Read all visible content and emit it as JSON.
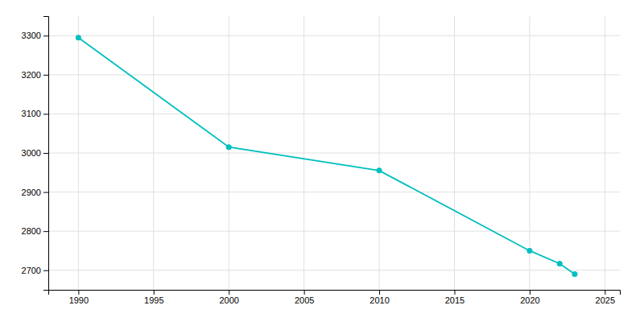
{
  "chart_data": {
    "type": "line",
    "x": [
      1990,
      2000,
      2010,
      2020,
      2022,
      2023
    ],
    "values": [
      3295,
      3015,
      2955,
      2750,
      2717,
      2690
    ],
    "color": "#00BFBF",
    "marker": "circle",
    "xlim": [
      1988,
      2026
    ],
    "ylim": [
      2650,
      3350
    ],
    "xticks": [
      1990,
      1995,
      2000,
      2005,
      2010,
      2015,
      2020,
      2025
    ],
    "yticks": [
      2700,
      2800,
      2900,
      3000,
      3100,
      3200,
      3300
    ],
    "grid": true
  }
}
